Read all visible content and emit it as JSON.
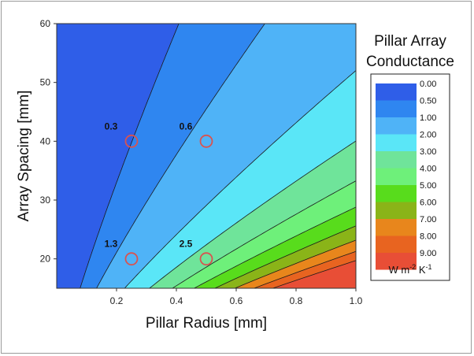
{
  "chart_data": {
    "type": "contour",
    "xlabel": "Pillar Radius [mm]",
    "ylabel": "Array Spacing [mm]",
    "xlim": [
      0,
      1.0
    ],
    "ylim": [
      15,
      60
    ],
    "x_ticks": [
      "0.2",
      "0.4",
      "0.6",
      "0.8",
      "1.0"
    ],
    "y_ticks": [
      "20",
      "30",
      "40",
      "50",
      "60"
    ],
    "x_tick_values": [
      0.2,
      0.4,
      0.6,
      0.8,
      1.0
    ],
    "y_tick_values": [
      20,
      30,
      40,
      50,
      60
    ],
    "legend": {
      "title_line1": "Pillar Array",
      "title_line2": "Conductance",
      "unit_prefix": "W m",
      "unit_exp1": "-2",
      "unit_mid": " K",
      "unit_exp2": "-1",
      "levels": [
        "0.00",
        "0.50",
        "1.00",
        "2.00",
        "3.00",
        "4.00",
        "5.00",
        "6.00",
        "7.00",
        "8.00",
        "9.00"
      ],
      "level_values": [
        0,
        0.5,
        1,
        2,
        3,
        4,
        5,
        6,
        7,
        8,
        9
      ],
      "colors": [
        "#2f5ee8",
        "#2f86f0",
        "#4fb3f7",
        "#5ae6f7",
        "#6fe49a",
        "#6ef07a",
        "#58dc1c",
        "#8ab418",
        "#e8861c",
        "#e86420",
        "#e84e36"
      ]
    },
    "points": [
      {
        "x": 0.25,
        "y": 40,
        "label": "0.3"
      },
      {
        "x": 0.5,
        "y": 40,
        "label": "0.6"
      },
      {
        "x": 0.25,
        "y": 20,
        "label": "1.3"
      },
      {
        "x": 0.5,
        "y": 20,
        "label": "2.5"
      }
    ]
  }
}
